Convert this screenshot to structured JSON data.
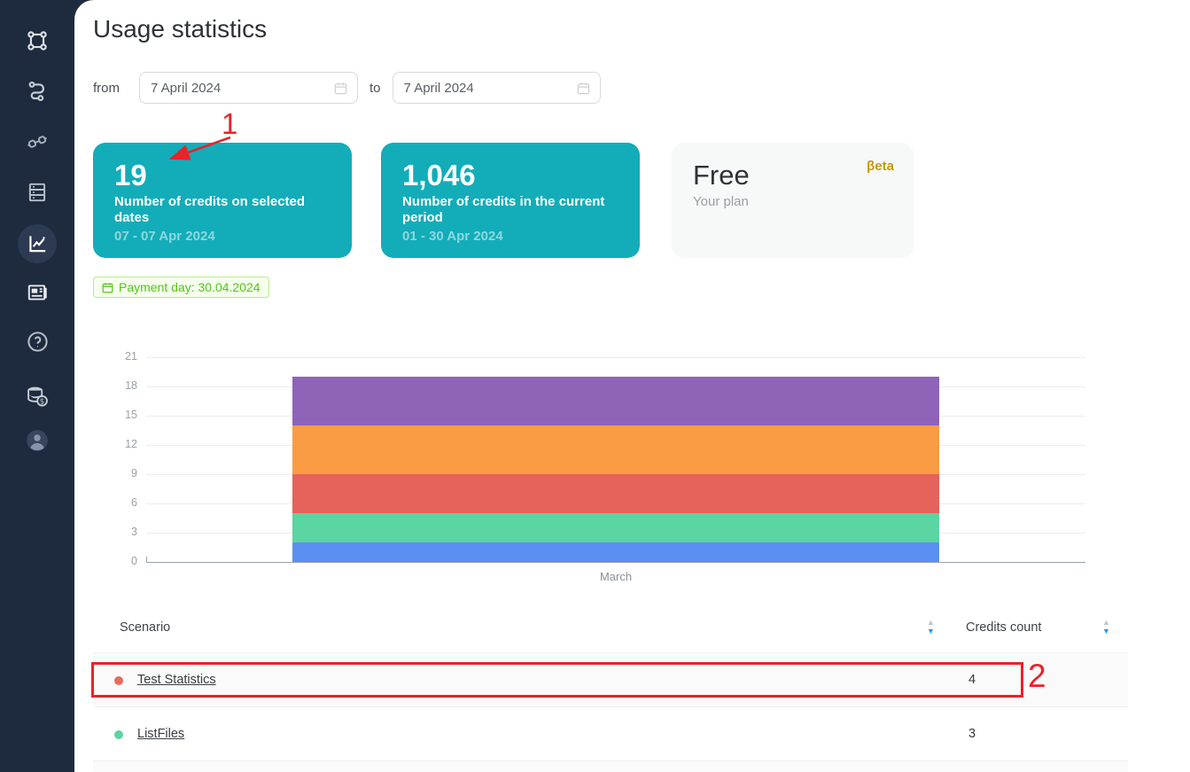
{
  "page": {
    "title": "Usage statistics"
  },
  "filters": {
    "from_label": "from",
    "to_label": "to",
    "from_value": "7 April 2024",
    "to_value": "7 April 2024"
  },
  "cards": [
    {
      "value": "19",
      "label": "Number of credits on selected dates",
      "period": "07 - 07 Apr 2024"
    },
    {
      "value": "1,046",
      "label": "Number of credits in the current period",
      "period": "01 - 30 Apr 2024"
    }
  ],
  "plan_card": {
    "name": "Free",
    "label": "Your plan",
    "badge": "βeta"
  },
  "payment_badge": {
    "text": "Payment day: 30.04.2024"
  },
  "chart_data": {
    "type": "bar",
    "stacked": true,
    "categories": [
      "March"
    ],
    "series": [
      {
        "name": "blue-segment",
        "color": "#5b90f2",
        "values": [
          2
        ]
      },
      {
        "name": "green-segment",
        "color": "#5bd5a1",
        "values": [
          3
        ]
      },
      {
        "name": "red-segment",
        "color": "#e5635a",
        "values": [
          4
        ]
      },
      {
        "name": "orange-segment",
        "color": "#fa9c44",
        "values": [
          5
        ]
      },
      {
        "name": "purple-segment",
        "color": "#8f63b8",
        "values": [
          5
        ]
      }
    ],
    "ylim": [
      0,
      21
    ],
    "yticks": [
      0,
      3,
      6,
      9,
      12,
      15,
      18,
      21
    ],
    "grid": true,
    "legend": false,
    "xlabel": "",
    "ylabel": ""
  },
  "table": {
    "columns": [
      "Scenario",
      "Credits count"
    ],
    "sort_indicators": [
      {
        "column": "Scenario",
        "active": "desc"
      },
      {
        "column": "Credits count",
        "active": "desc"
      }
    ],
    "rows": [
      {
        "name": "Test Statistics",
        "dot_color": "#ea6a5e",
        "credits": "4"
      },
      {
        "name": "ListFiles",
        "dot_color": "#5bd5a1",
        "credits": "3"
      }
    ]
  },
  "annotations": {
    "marker_one": "1",
    "marker_two": "2",
    "color": "#e8232a"
  },
  "sidebar": {
    "items": [
      {
        "icon": "workflow-icon",
        "active": false
      },
      {
        "icon": "route-icon",
        "active": false
      },
      {
        "icon": "plug-icon",
        "active": false
      },
      {
        "icon": "server-icon",
        "active": false
      },
      {
        "icon": "analytics-icon",
        "active": true
      },
      {
        "icon": "news-icon",
        "active": false
      },
      {
        "icon": "help-icon",
        "active": false
      },
      {
        "icon": "billing-icon",
        "active": false
      },
      {
        "icon": "profile-icon",
        "active": false
      }
    ]
  },
  "colors": {
    "sidebar_bg": "#1e2a3e",
    "accent_teal": "#12adb9",
    "badge_green": "#52c41a",
    "annotation_red": "#e8232a",
    "sort_active_blue": "#2196f3"
  }
}
